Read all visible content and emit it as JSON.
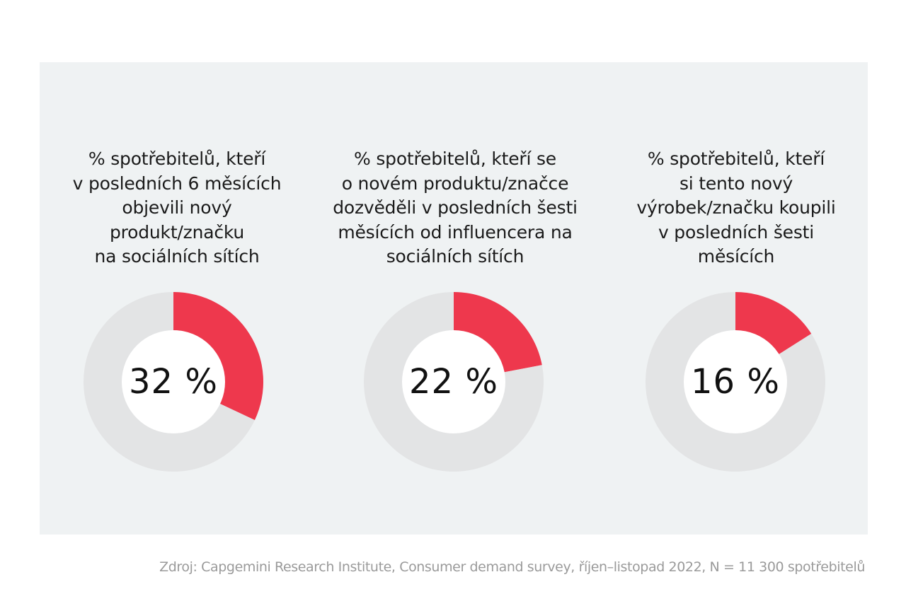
{
  "chart_data": [
    {
      "type": "pie",
      "subtype": "donut",
      "title_lines": [
        "% spotřebitelů, kteří",
        "v posledních 6 měsících",
        "objevili nový",
        "produkt/značku",
        "na sociálních sítích"
      ],
      "value": 32,
      "value_label": "32 %",
      "slices": [
        {
          "name": "",
          "value": 32,
          "color": "#ee384d"
        },
        {
          "name": "",
          "value": 68,
          "color": "#e3e4e5"
        }
      ]
    },
    {
      "type": "pie",
      "subtype": "donut",
      "title_lines": [
        "% spotřebitelů, kteří se",
        "o novém produktu/značce",
        "dozvěděli v posledních šesti",
        "měsících od influencera na",
        "sociálních sítích"
      ],
      "value": 22,
      "value_label": "22 %",
      "slices": [
        {
          "name": "",
          "value": 22,
          "color": "#ee384d"
        },
        {
          "name": "",
          "value": 78,
          "color": "#e3e4e5"
        }
      ]
    },
    {
      "type": "pie",
      "subtype": "donut",
      "title_lines": [
        "% spotřebitelů, kteří",
        "si tento nový",
        "výrobek/značku koupili",
        "v posledních šesti",
        "měsících"
      ],
      "value": 16,
      "value_label": "16 %",
      "slices": [
        {
          "name": "",
          "value": 16,
          "color": "#ee384d"
        },
        {
          "name": "",
          "value": 84,
          "color": "#e3e4e5"
        }
      ]
    }
  ],
  "colors": {
    "accent": "#ee384d",
    "track": "#e3e4e5",
    "panel_background": "#eff2f3",
    "hole": "#ffffff"
  },
  "source": "Zdroj: Capgemini Research Institute, Consumer demand survey, říjen–listopad 2022, N = 11 300 spotřebitelů"
}
